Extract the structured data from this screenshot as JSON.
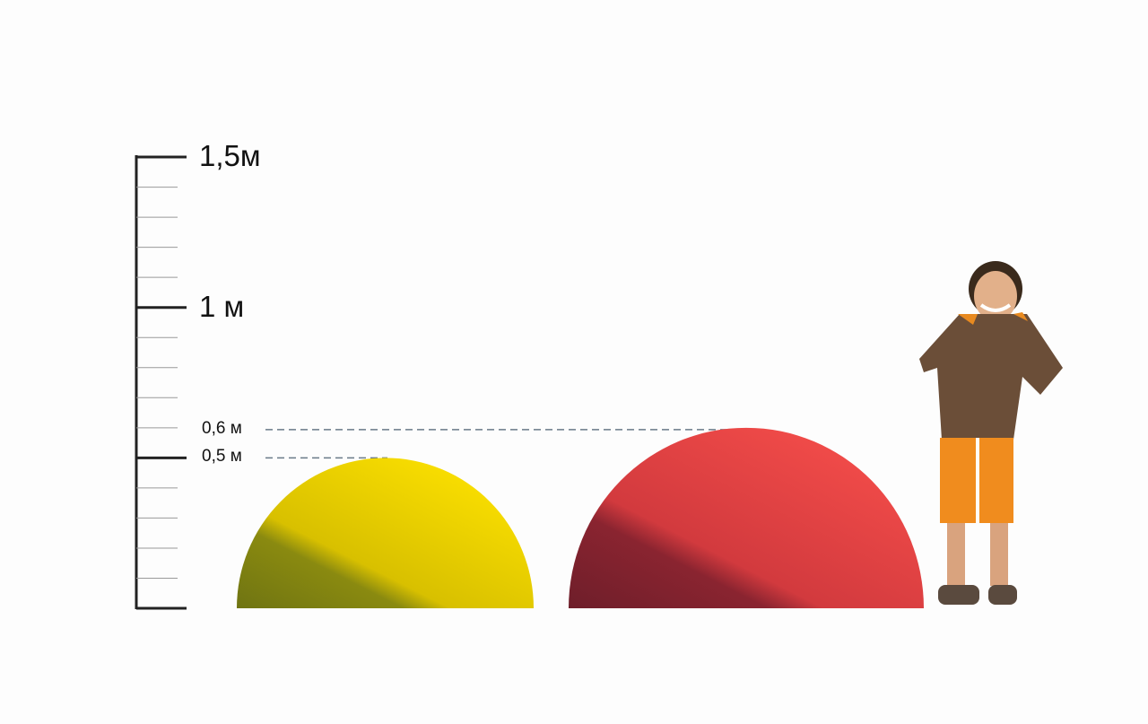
{
  "scale": {
    "labels": [
      {
        "value": 1.5,
        "text": "1,5м"
      },
      {
        "value": 1.0,
        "text": "1 м"
      }
    ],
    "max": 1.5,
    "minor_step": 0.1
  },
  "markers": [
    {
      "value": 0.6,
      "text": "0,6 м"
    },
    {
      "value": 0.5,
      "text": "0,5 м"
    }
  ],
  "domes": [
    {
      "name": "yellow-dome",
      "height_m": 0.5,
      "color": "#f2d600",
      "shade": "#6f7412"
    },
    {
      "name": "red-dome",
      "height_m": 0.6,
      "color": "#e94545",
      "shade": "#6e1e2a"
    }
  ],
  "figure": "child-figure"
}
